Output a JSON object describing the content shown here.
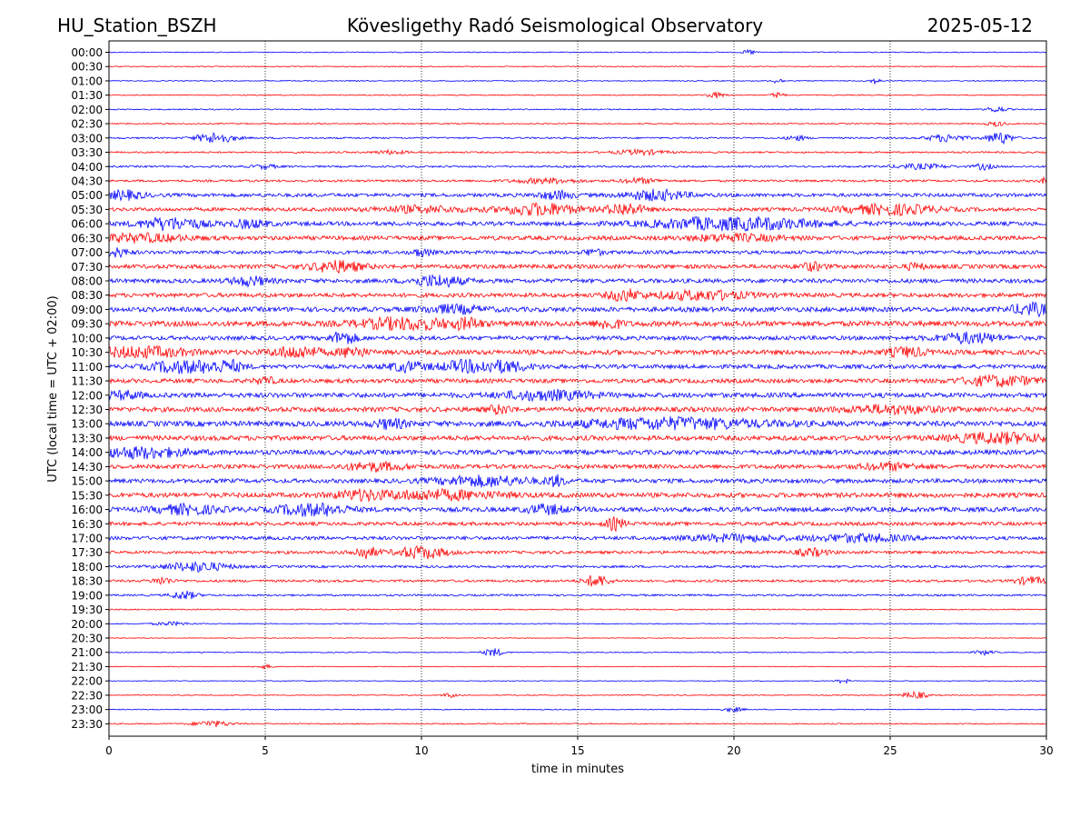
{
  "header": {
    "station": "HU_Station_BSZH",
    "observatory": "Kövesligethy Radó Seismological Observatory",
    "date": "2025-05-12"
  },
  "chart_data": {
    "type": "line",
    "xlabel": "time in minutes",
    "ylabel": "UTC (local time = UTC + 02:00)",
    "xlim": [
      0,
      30
    ],
    "xticks": [
      0,
      5,
      10,
      15,
      20,
      25,
      30
    ],
    "vertical_gridlines": [
      5,
      10,
      15,
      20,
      25
    ],
    "grid": "vertical dotted",
    "row_colors": [
      "#0000ff",
      "#ff0000"
    ],
    "rows": [
      {
        "label": "00:00",
        "amp": 0.08,
        "bursts": [
          [
            20.5,
            0.2,
            0.4
          ]
        ]
      },
      {
        "label": "00:30",
        "amp": 0.08,
        "bursts": []
      },
      {
        "label": "01:00",
        "amp": 0.08,
        "bursts": [
          [
            21.4,
            0.2,
            0.4
          ],
          [
            24.5,
            0.2,
            0.4
          ]
        ]
      },
      {
        "label": "01:30",
        "amp": 0.08,
        "bursts": [
          [
            19.4,
            0.3,
            0.5
          ],
          [
            21.4,
            0.2,
            0.5
          ]
        ]
      },
      {
        "label": "02:00",
        "amp": 0.1,
        "bursts": [
          [
            28.4,
            0.3,
            0.5
          ]
        ]
      },
      {
        "label": "02:30",
        "amp": 0.1,
        "bursts": [
          [
            28.4,
            0.3,
            0.4
          ]
        ]
      },
      {
        "label": "03:00",
        "amp": 0.14,
        "bursts": [
          [
            3.4,
            0.6,
            0.9
          ],
          [
            22.0,
            0.3,
            0.4
          ],
          [
            26.8,
            0.6,
            0.6
          ],
          [
            28.5,
            0.4,
            1.0
          ]
        ]
      },
      {
        "label": "03:30",
        "amp": 0.14,
        "bursts": [
          [
            17.0,
            0.8,
            0.4
          ],
          [
            9.0,
            0.5,
            0.3
          ]
        ]
      },
      {
        "label": "04:00",
        "amp": 0.16,
        "bursts": [
          [
            26.0,
            0.8,
            0.4
          ],
          [
            28.0,
            0.3,
            0.5
          ],
          [
            5.0,
            0.4,
            0.3
          ]
        ]
      },
      {
        "label": "04:30",
        "amp": 0.18,
        "bursts": [
          [
            14.0,
            1.0,
            0.4
          ],
          [
            17.0,
            0.6,
            0.4
          ],
          [
            30.0,
            0.2,
            0.5
          ]
        ]
      },
      {
        "label": "05:00",
        "amp": 0.3,
        "bursts": [
          [
            0.5,
            0.6,
            0.7
          ],
          [
            14.3,
            0.6,
            0.6
          ],
          [
            17.5,
            1.0,
            0.8
          ]
        ]
      },
      {
        "label": "05:30",
        "amp": 0.3,
        "bursts": [
          [
            13.8,
            1.2,
            1.0
          ],
          [
            16.5,
            0.6,
            1.0
          ],
          [
            25.0,
            1.5,
            0.8
          ],
          [
            10.0,
            1.5,
            0.5
          ]
        ]
      },
      {
        "label": "06:00",
        "amp": 0.35,
        "bursts": [
          [
            2.0,
            1.0,
            1.0
          ],
          [
            20.0,
            2.5,
            1.1
          ],
          [
            4.5,
            0.6,
            0.6
          ]
        ]
      },
      {
        "label": "06:30",
        "amp": 0.35,
        "bursts": [
          [
            1.0,
            1.5,
            0.6
          ],
          [
            20.0,
            1.5,
            0.5
          ]
        ]
      },
      {
        "label": "07:00",
        "amp": 0.3,
        "bursts": [
          [
            0.2,
            0.4,
            0.7
          ],
          [
            10.0,
            0.3,
            0.6
          ],
          [
            15.5,
            0.3,
            0.5
          ]
        ]
      },
      {
        "label": "07:30",
        "amp": 0.35,
        "bursts": [
          [
            7.3,
            0.8,
            0.9
          ],
          [
            22.5,
            0.4,
            0.6
          ],
          [
            25.8,
            0.3,
            0.5
          ]
        ]
      },
      {
        "label": "08:00",
        "amp": 0.35,
        "bursts": [
          [
            10.5,
            0.8,
            0.9
          ],
          [
            4.5,
            0.6,
            0.7
          ]
        ]
      },
      {
        "label": "08:30",
        "amp": 0.35,
        "bursts": [
          [
            16.5,
            0.5,
            0.9
          ],
          [
            19.0,
            1.5,
            0.7
          ]
        ]
      },
      {
        "label": "09:00",
        "amp": 0.4,
        "bursts": [
          [
            29.5,
            0.6,
            1.0
          ],
          [
            11.0,
            1.0,
            0.6
          ]
        ]
      },
      {
        "label": "09:30",
        "amp": 0.45,
        "bursts": [
          [
            9.5,
            1.5,
            0.9
          ],
          [
            11.5,
            0.4,
            0.8
          ],
          [
            16.0,
            0.4,
            0.8
          ]
        ]
      },
      {
        "label": "10:00",
        "amp": 0.35,
        "bursts": [
          [
            7.5,
            0.4,
            1.1
          ],
          [
            27.5,
            1.0,
            0.8
          ]
        ]
      },
      {
        "label": "10:30",
        "amp": 0.4,
        "bursts": [
          [
            1.0,
            1.5,
            0.8
          ],
          [
            6.0,
            0.8,
            0.9
          ],
          [
            7.8,
            0.4,
            0.9
          ],
          [
            25.5,
            0.6,
            0.7
          ]
        ]
      },
      {
        "label": "11:00",
        "amp": 0.35,
        "bursts": [
          [
            2.5,
            1.0,
            1.3
          ],
          [
            3.7,
            0.5,
            1.2
          ],
          [
            12.0,
            1.2,
            1.4
          ],
          [
            9.5,
            0.6,
            0.7
          ]
        ]
      },
      {
        "label": "11:30",
        "amp": 0.35,
        "bursts": [
          [
            28.5,
            1.2,
            0.8
          ],
          [
            5.0,
            0.3,
            0.6
          ]
        ]
      },
      {
        "label": "12:00",
        "amp": 0.4,
        "bursts": [
          [
            14.0,
            1.5,
            0.7
          ],
          [
            0.5,
            0.5,
            0.6
          ]
        ]
      },
      {
        "label": "12:30",
        "amp": 0.4,
        "bursts": [
          [
            25.0,
            1.5,
            0.6
          ],
          [
            12.5,
            0.4,
            0.6
          ]
        ]
      },
      {
        "label": "13:00",
        "amp": 0.45,
        "bursts": [
          [
            18.0,
            3.0,
            0.8
          ],
          [
            9.0,
            0.5,
            0.7
          ]
        ]
      },
      {
        "label": "13:30",
        "amp": 0.4,
        "bursts": [
          [
            28.5,
            1.5,
            0.8
          ]
        ]
      },
      {
        "label": "14:00",
        "amp": 0.4,
        "bursts": [
          [
            1.0,
            1.5,
            0.8
          ]
        ]
      },
      {
        "label": "14:30",
        "amp": 0.35,
        "bursts": [
          [
            8.5,
            1.0,
            0.6
          ],
          [
            25.0,
            1.0,
            0.5
          ]
        ]
      },
      {
        "label": "15:00",
        "amp": 0.35,
        "bursts": [
          [
            12.0,
            1.5,
            0.8
          ],
          [
            14.3,
            0.3,
            0.8
          ]
        ]
      },
      {
        "label": "15:30",
        "amp": 0.4,
        "bursts": [
          [
            10.5,
            2.0,
            0.7
          ],
          [
            8.0,
            0.8,
            0.6
          ]
        ]
      },
      {
        "label": "16:00",
        "amp": 0.4,
        "bursts": [
          [
            6.5,
            1.0,
            1.1
          ],
          [
            2.5,
            1.0,
            0.7
          ],
          [
            14.0,
            0.6,
            0.7
          ]
        ]
      },
      {
        "label": "16:30",
        "amp": 0.3,
        "bursts": [
          [
            16.2,
            0.3,
            1.0
          ]
        ]
      },
      {
        "label": "17:00",
        "amp": 0.3,
        "bursts": [
          [
            24.0,
            1.5,
            0.6
          ],
          [
            20.0,
            1.5,
            0.5
          ]
        ]
      },
      {
        "label": "17:30",
        "amp": 0.25,
        "bursts": [
          [
            8.2,
            0.4,
            1.0
          ],
          [
            10.0,
            0.8,
            1.0
          ],
          [
            22.5,
            0.5,
            0.6
          ]
        ]
      },
      {
        "label": "18:00",
        "amp": 0.2,
        "bursts": [
          [
            2.8,
            1.0,
            0.8
          ]
        ]
      },
      {
        "label": "18:30",
        "amp": 0.2,
        "bursts": [
          [
            15.6,
            0.4,
            1.0
          ],
          [
            1.7,
            0.3,
            0.6
          ],
          [
            29.5,
            0.5,
            0.6
          ]
        ]
      },
      {
        "label": "19:00",
        "amp": 0.16,
        "bursts": [
          [
            2.4,
            0.4,
            0.7
          ]
        ]
      },
      {
        "label": "19:30",
        "amp": 0.1,
        "bursts": []
      },
      {
        "label": "20:00",
        "amp": 0.08,
        "bursts": [
          [
            2.0,
            0.6,
            0.3
          ]
        ]
      },
      {
        "label": "20:30",
        "amp": 0.06,
        "bursts": []
      },
      {
        "label": "21:00",
        "amp": 0.08,
        "bursts": [
          [
            12.3,
            0.3,
            0.7
          ],
          [
            28.0,
            0.3,
            0.4
          ]
        ]
      },
      {
        "label": "21:30",
        "amp": 0.06,
        "bursts": [
          [
            5.0,
            0.3,
            0.3
          ]
        ]
      },
      {
        "label": "22:00",
        "amp": 0.06,
        "bursts": [
          [
            23.5,
            0.2,
            0.4
          ]
        ]
      },
      {
        "label": "22:30",
        "amp": 0.08,
        "bursts": [
          [
            25.8,
            0.4,
            0.6
          ],
          [
            10.9,
            0.2,
            0.4
          ]
        ]
      },
      {
        "label": "23:00",
        "amp": 0.08,
        "bursts": [
          [
            20.0,
            0.3,
            0.4
          ]
        ]
      },
      {
        "label": "23:30",
        "amp": 0.1,
        "bursts": [
          [
            3.3,
            0.6,
            0.5
          ]
        ]
      }
    ]
  }
}
